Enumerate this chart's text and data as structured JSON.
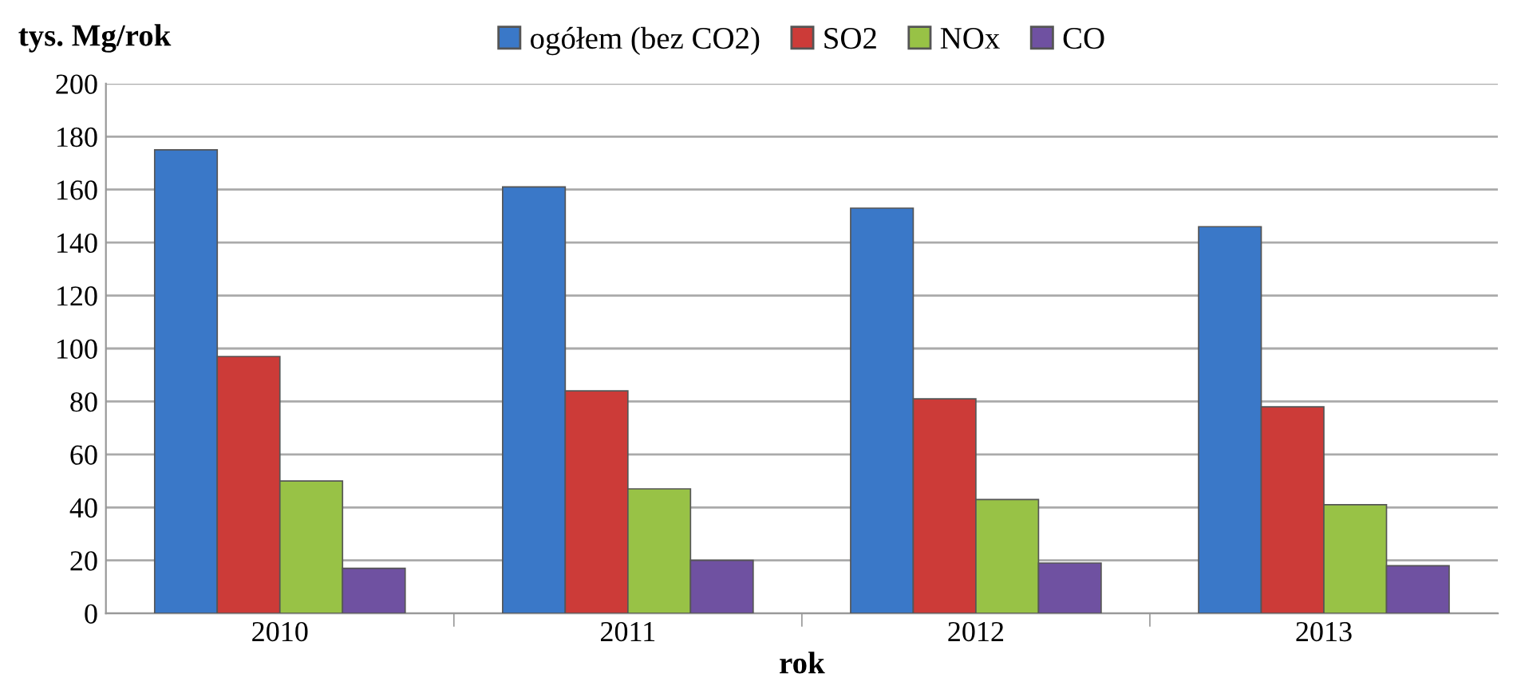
{
  "chart_data": {
    "type": "bar",
    "ylabel": "tys. Mg/rok",
    "xlabel": "rok",
    "categories": [
      "2010",
      "2011",
      "2012",
      "2013"
    ],
    "series": [
      {
        "name": "ogółem (bez CO2)",
        "color": "#3a78c8",
        "values": [
          175,
          161,
          153,
          146
        ]
      },
      {
        "name": "SO2",
        "color": "#cc3b38",
        "values": [
          97,
          84,
          81,
          78
        ]
      },
      {
        "name": "NOx",
        "color": "#98c246",
        "values": [
          50,
          47,
          43,
          41
        ]
      },
      {
        "name": "CO",
        "color": "#6f51a1",
        "values": [
          17,
          20,
          19,
          18
        ]
      }
    ],
    "ylim": [
      0,
      200
    ],
    "yticks": [
      0,
      20,
      40,
      60,
      80,
      100,
      120,
      140,
      160,
      180,
      200
    ],
    "grid": "y",
    "legend": "top"
  }
}
